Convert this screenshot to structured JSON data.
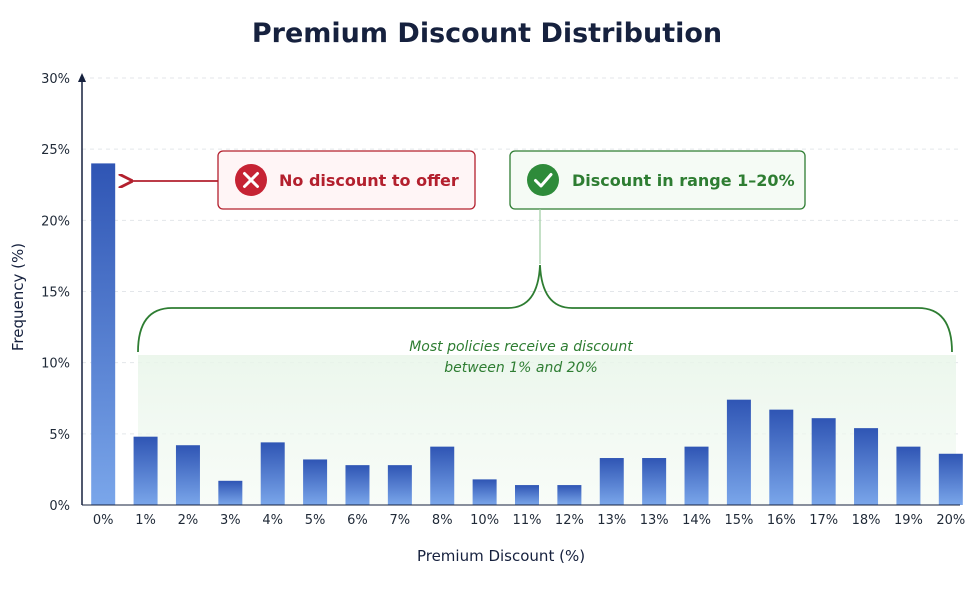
{
  "chart_data": {
    "type": "bar",
    "title": "Premium Discount Distribution",
    "xlabel": "Premium Discount (%)",
    "ylabel": "Frequency (%)",
    "ylim": [
      0,
      30
    ],
    "yticks": [
      "0%",
      "5%",
      "10%",
      "15%",
      "20%",
      "25%",
      "30%"
    ],
    "categories": [
      "0%",
      "1%",
      "2%",
      "3%",
      "4%",
      "5%",
      "6%",
      "7%",
      "8%",
      "10%",
      "11%",
      "12%",
      "13%",
      "13%",
      "14%",
      "15%",
      "16%",
      "17%",
      "18%",
      "19%",
      "20%"
    ],
    "values": [
      24.0,
      4.8,
      4.2,
      1.7,
      4.4,
      3.2,
      2.8,
      2.8,
      4.1,
      1.8,
      1.4,
      1.4,
      3.3,
      3.3,
      4.1,
      7.4,
      6.7,
      6.1,
      5.4,
      4.1,
      3.6
    ],
    "grid": true,
    "colors": {
      "bar_top": "#2f55b4",
      "bar_bottom": "#7aa6ea",
      "red": "#b3202e",
      "green": "#2e7d32"
    },
    "annotations": {
      "no_discount": "No discount to offer",
      "discount_range": "Discount in range 1–20%",
      "brace_line1": "Most policies receive a discount",
      "brace_line2": "between 1% and 20%"
    }
  }
}
